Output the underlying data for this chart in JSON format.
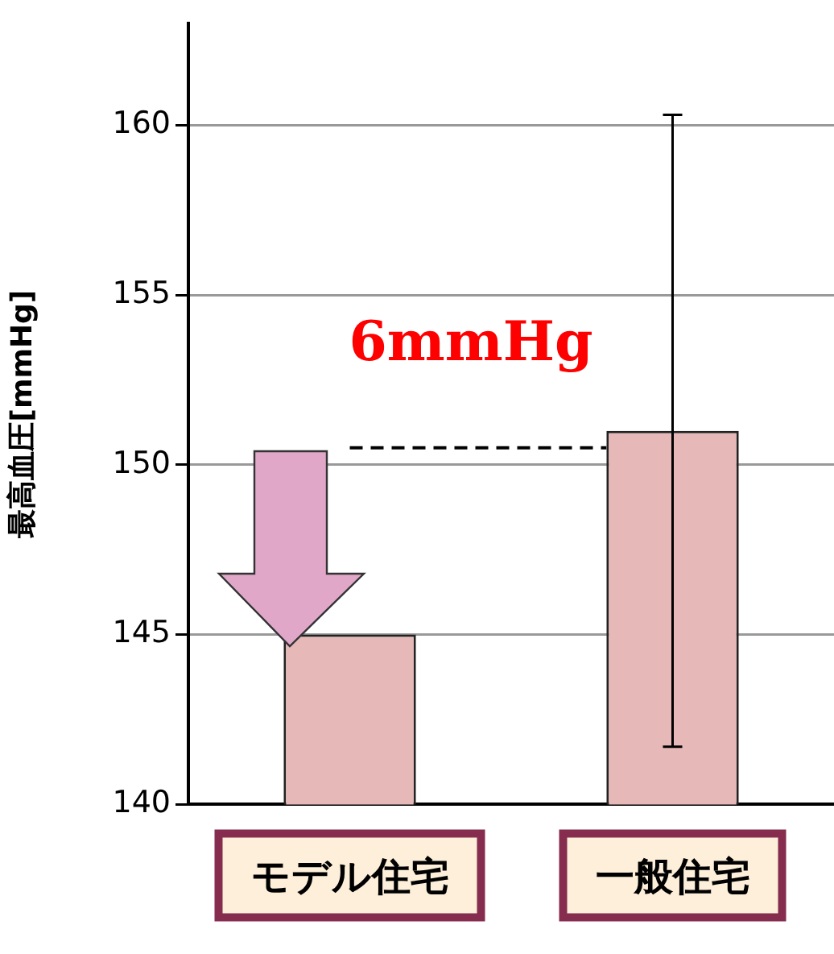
{
  "chart_data": {
    "type": "bar",
    "ylabel": "最高血圧[mmHg]",
    "categories": [
      "モデル住宅",
      "一般住宅"
    ],
    "values": [
      145,
      151
    ],
    "errors": [
      null,
      9.3
    ],
    "color": "#e6b8b7",
    "ylim": [
      140,
      163
    ],
    "yticks": [
      140,
      145,
      150,
      155,
      160
    ],
    "grid": "y",
    "ref_lines": [
      {
        "axis": "y",
        "value": 150.5,
        "line_style": "dashed",
        "color": "#000000"
      }
    ],
    "annotations": [
      "6mmHg"
    ]
  }
}
